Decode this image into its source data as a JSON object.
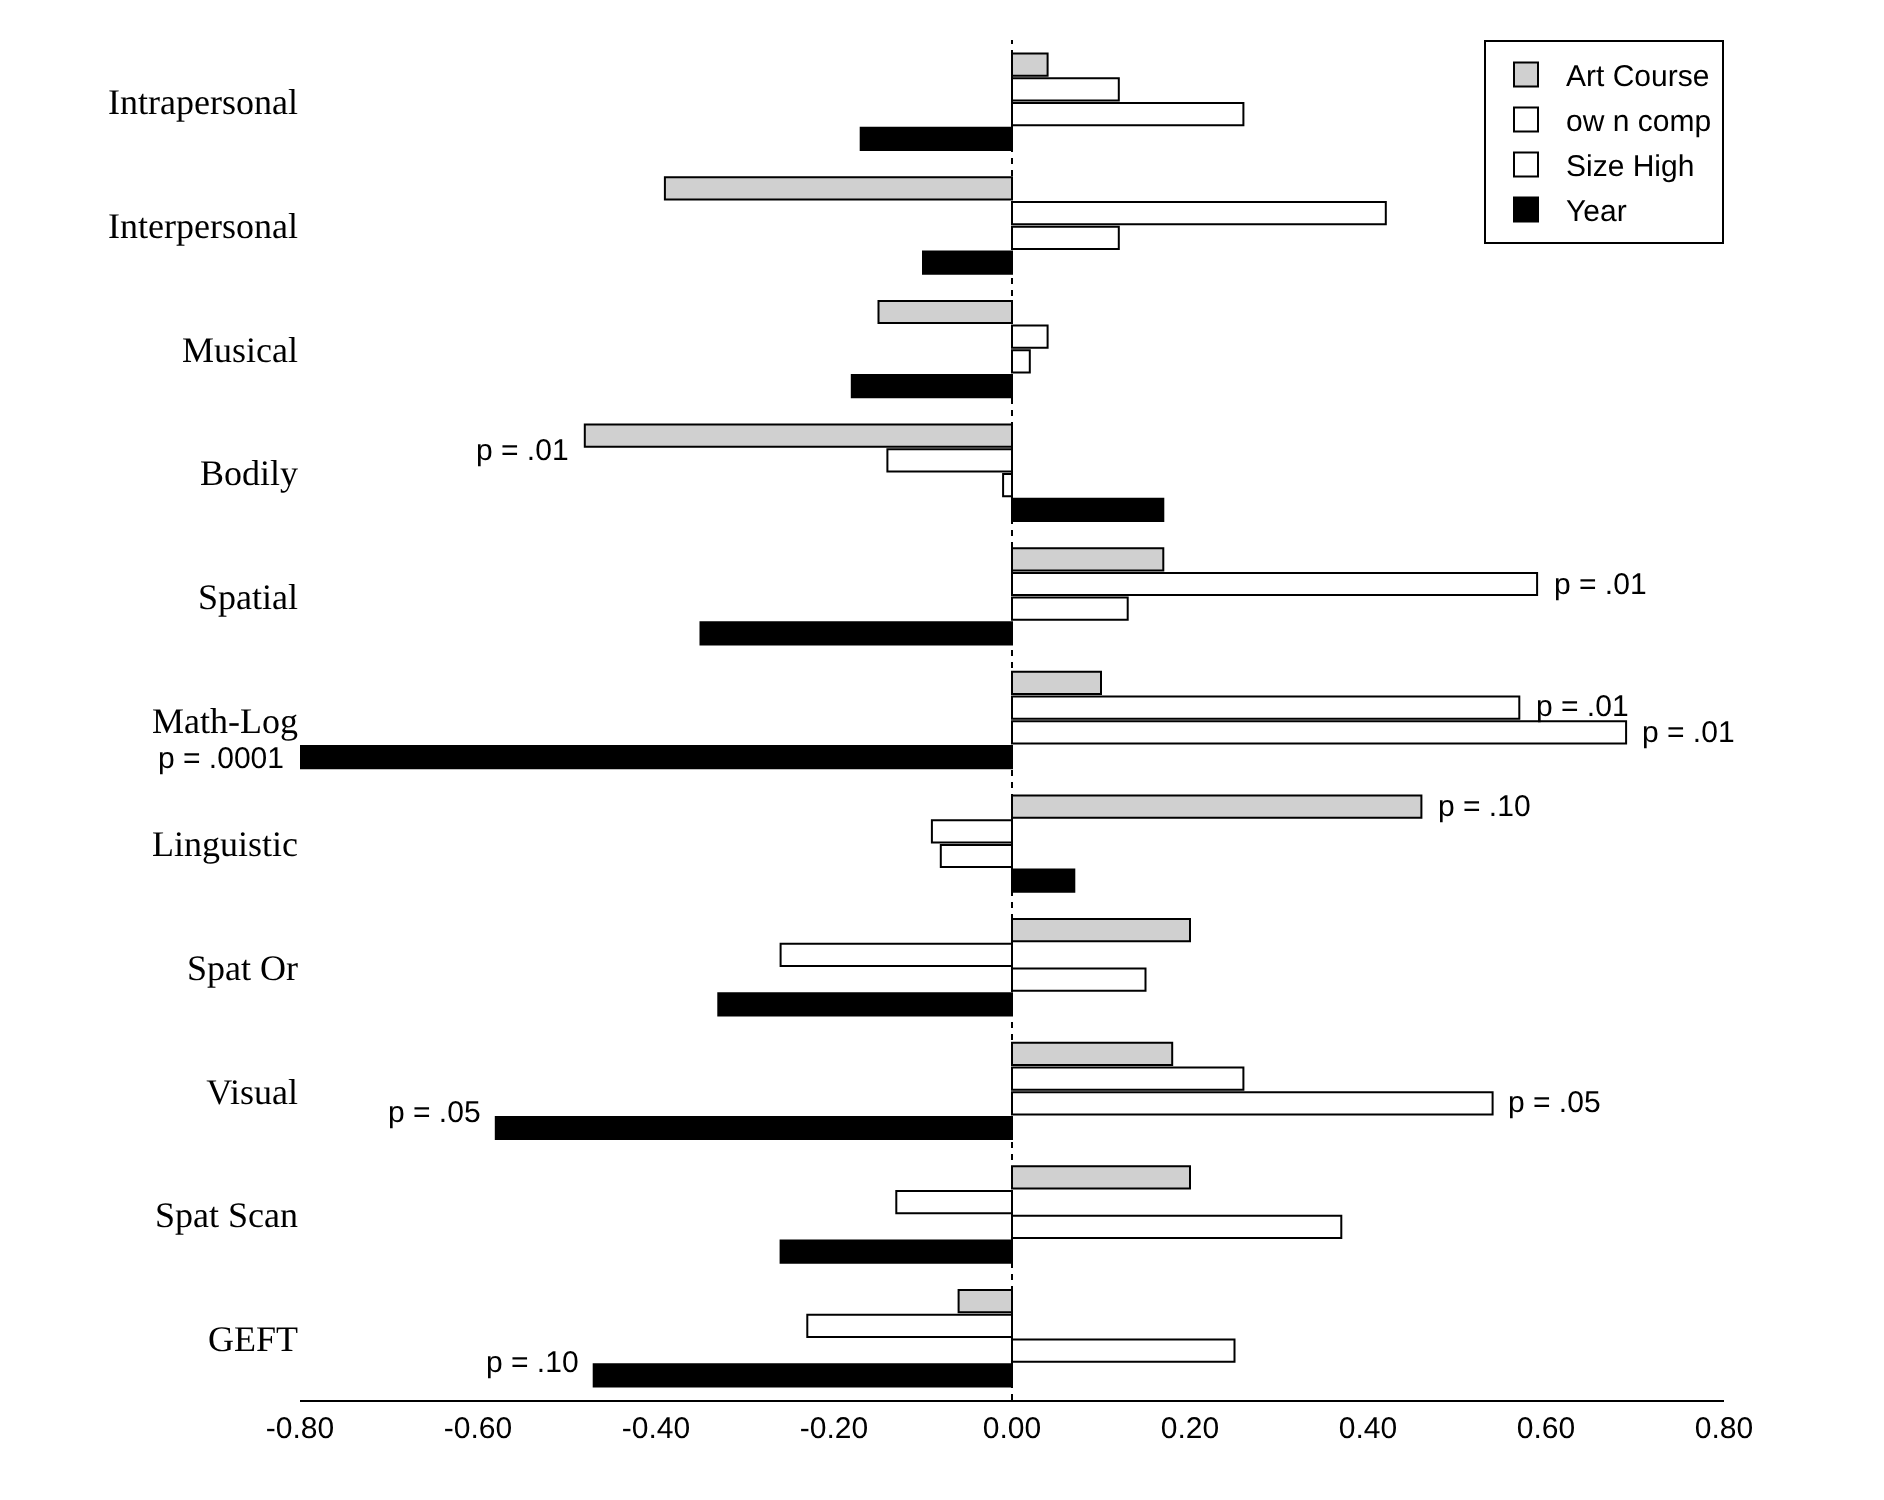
{
  "chart_data": {
    "type": "bar",
    "orientation": "horizontal",
    "categories": [
      "Intrapersonal",
      "Interpersonal",
      "Musical",
      "Bodily",
      "Spatial",
      "Math-Log",
      "Linguistic",
      "Spat Or",
      "Visual",
      "Spat Scan",
      "GEFT"
    ],
    "series": [
      {
        "name": "Art Course",
        "color": "#d0d0d0",
        "values": [
          0.04,
          -0.39,
          -0.15,
          -0.48,
          0.17,
          0.1,
          0.46,
          0.2,
          0.18,
          0.2,
          -0.06
        ]
      },
      {
        "name": "ow n comp",
        "color": "#ffffff",
        "values": [
          0.12,
          0.42,
          0.04,
          -0.14,
          0.59,
          0.57,
          -0.09,
          -0.26,
          0.26,
          -0.13,
          -0.23
        ]
      },
      {
        "name": "Size High",
        "color": "#ffffff",
        "values": [
          0.26,
          0.12,
          0.02,
          -0.01,
          0.13,
          0.69,
          -0.08,
          0.15,
          0.54,
          0.37,
          0.25
        ]
      },
      {
        "name": "Year",
        "color": "#000000",
        "values": [
          -0.17,
          -0.1,
          -0.18,
          0.17,
          -0.35,
          -0.8,
          0.07,
          -0.33,
          -0.58,
          -0.26,
          -0.47
        ]
      }
    ],
    "xlim": [
      -0.8,
      0.8
    ],
    "xticks": [
      {
        "value": -0.8,
        "label": "-0.80"
      },
      {
        "value": -0.6,
        "label": "-0.60"
      },
      {
        "value": -0.4,
        "label": "-0.40"
      },
      {
        "value": -0.2,
        "label": "-0.20"
      },
      {
        "value": 0,
        "label": "0.00"
      },
      {
        "value": 0.2,
        "label": "0.20"
      },
      {
        "value": 0.4,
        "label": "0.40"
      },
      {
        "value": 0.6,
        "label": "0.60"
      },
      {
        "value": 0.8,
        "label": "0.80"
      }
    ],
    "annotations": [
      "p = .01",
      {
        "text": "p = .01",
        "x": 0.59,
        "y": "Spatial"
      },
      {
        "text": "p = .01",
        "x": 0.57,
        "y": "Math-Log"
      },
      {
        "text": "p = .01",
        "x": 0.69,
        "y": "Math-Log"
      },
      "p = .0001",
      "p = .10",
      {
        "text": "p = .05",
        "x": 0.54,
        "y": "Visual"
      },
      "p = .05",
      "p = .10"
    ],
    "ref_lines": [
      {
        "axis": "x",
        "value": 0,
        "line_style": "dotted",
        "color": "#000000"
      }
    ],
    "legend": "top right"
  }
}
